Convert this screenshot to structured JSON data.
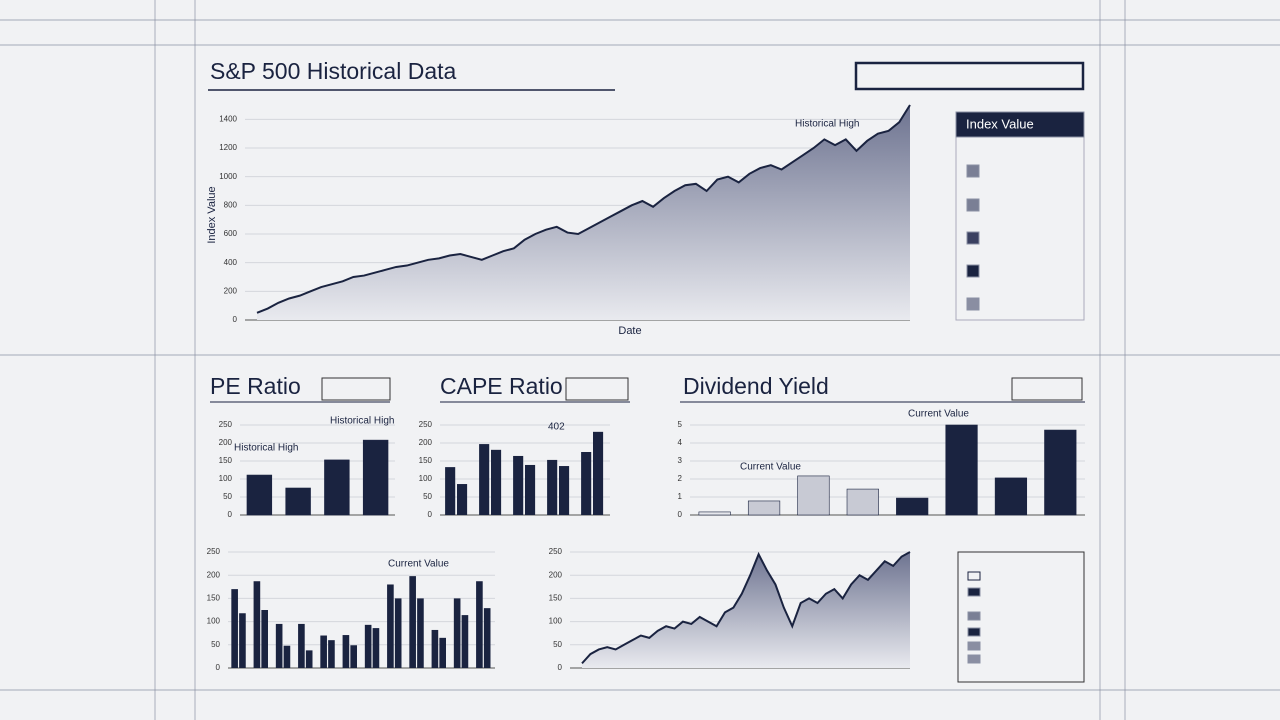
{
  "chart_data": [
    {
      "type": "area",
      "title": "S&P 500 Historical Data",
      "y_label": "Index Value",
      "x_label": "Date",
      "legend_title": "Index Value",
      "annotations": [
        "Historical High"
      ],
      "color": "#1a2340",
      "ylim": [
        0,
        1500
      ],
      "yticks": [
        0,
        200,
        400,
        600,
        800,
        1000,
        1200,
        1400
      ],
      "grid": true,
      "values": [
        50,
        80,
        120,
        150,
        170,
        200,
        230,
        250,
        270,
        300,
        310,
        330,
        350,
        370,
        380,
        400,
        420,
        430,
        450,
        460,
        440,
        420,
        450,
        480,
        500,
        560,
        600,
        630,
        650,
        610,
        600,
        640,
        680,
        720,
        760,
        800,
        830,
        790,
        850,
        900,
        940,
        950,
        900,
        980,
        1000,
        960,
        1020,
        1060,
        1080,
        1050,
        1100,
        1150,
        1200,
        1260,
        1220,
        1260,
        1180,
        1250,
        1300,
        1320,
        1380,
        1500
      ]
    },
    {
      "type": "bar",
      "title": "PE Ratio",
      "annotations": [
        "Historical High",
        "Historical High"
      ],
      "color": "#1a2340",
      "ylim": [
        0,
        250
      ],
      "yticks": [
        0,
        50,
        100,
        150,
        200,
        250
      ],
      "grid": true,
      "values": [
        111,
        75,
        153,
        208
      ]
    },
    {
      "type": "grouped_bar",
      "title": "CAPE Ratio",
      "annotations": [
        "402"
      ],
      "ylim": [
        0,
        250
      ],
      "yticks": [
        0,
        50,
        100,
        150,
        200,
        250
      ],
      "grid": true,
      "series": [
        {
          "color": "#1a2340",
          "values": [
            133,
            197,
            164,
            153,
            175
          ]
        },
        {
          "color": "#1a2340",
          "values": [
            86,
            181,
            139,
            136,
            231
          ]
        }
      ]
    },
    {
      "type": "bar",
      "title": "Dividend Yield",
      "annotations": [
        "Current Value",
        "Current Value"
      ],
      "ylim": [
        0,
        5
      ],
      "yticks": [
        0,
        1,
        2,
        3,
        4,
        5
      ],
      "grid": true,
      "values": [
        0.17,
        0.78,
        2.17,
        1.44,
        0.94,
        5.0,
        2.06,
        4.72
      ],
      "colors": [
        "#e6e7ec",
        "#c8cad4",
        "#c8cad4",
        "#c8cad4",
        "#1a2340",
        "#1a2340",
        "#1a2340",
        "#1a2340"
      ]
    },
    {
      "type": "grouped_bar",
      "annotations": [
        "Current Value"
      ],
      "ylim": [
        0,
        250
      ],
      "yticks": [
        0,
        50,
        100,
        150,
        200,
        250
      ],
      "grid": true,
      "series": [
        {
          "color": "#1a2340",
          "values": [
            170,
            187,
            95,
            95,
            70,
            71,
            93,
            180,
            198,
            82,
            150,
            187
          ]
        },
        {
          "color": "#1a2340",
          "values": [
            118,
            125,
            48,
            38,
            60,
            49,
            86,
            150,
            150,
            65,
            114,
            129
          ]
        }
      ]
    },
    {
      "type": "area",
      "color": "#1a2340",
      "ylim": [
        0,
        250
      ],
      "yticks": [
        0,
        50,
        100,
        150,
        200,
        250
      ],
      "grid": true,
      "values": [
        10,
        30,
        40,
        45,
        40,
        50,
        60,
        70,
        65,
        80,
        90,
        85,
        100,
        95,
        110,
        100,
        90,
        120,
        130,
        160,
        200,
        245,
        210,
        180,
        130,
        90,
        140,
        150,
        140,
        160,
        170,
        150,
        180,
        200,
        190,
        210,
        230,
        220,
        240,
        250
      ]
    }
  ]
}
